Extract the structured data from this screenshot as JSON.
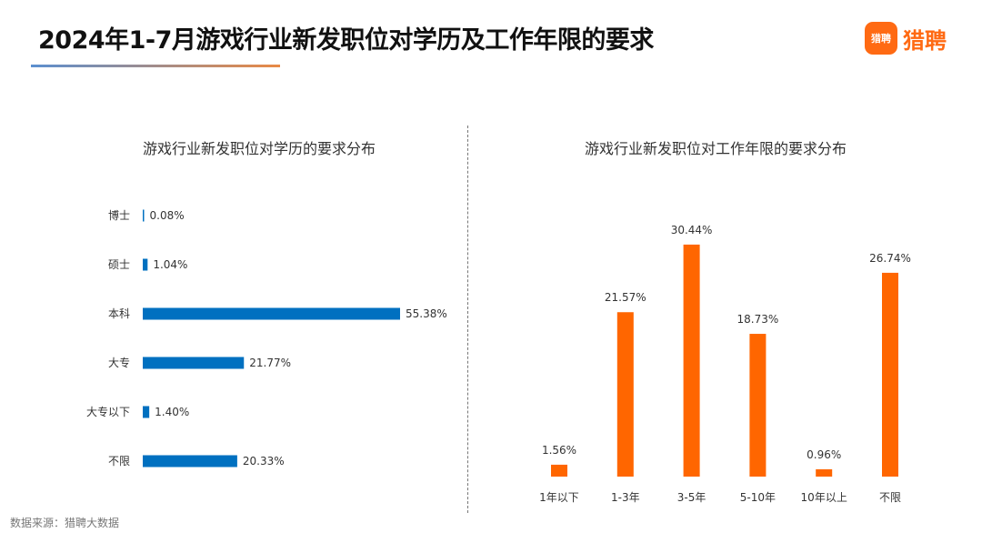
{
  "header": {
    "title": "2024年1-7月游戏行业新发职位对学历及工作年限的要求",
    "logo_badge": "猎聘",
    "logo_text": "猎聘"
  },
  "source": "数据来源：猎聘大数据",
  "chart_data": [
    {
      "type": "bar",
      "orientation": "horizontal",
      "title": "游戏行业新发职位对学历的要求分布",
      "categories": [
        "博士",
        "硕士",
        "本科",
        "大专",
        "大专以下",
        "不限"
      ],
      "values": [
        0.08,
        1.04,
        55.38,
        21.77,
        1.4,
        20.33
      ],
      "labels": [
        "0.08%",
        "1.04%",
        "55.38%",
        "21.77%",
        "1.40%",
        "20.33%"
      ],
      "unit": "%",
      "color": "#0070c0",
      "grid": false
    },
    {
      "type": "bar",
      "orientation": "vertical",
      "title": "游戏行业新发职位对工作年限的要求分布",
      "categories": [
        "1年以下",
        "1-3年",
        "3-5年",
        "5-10年",
        "10年以上",
        "不限"
      ],
      "values": [
        1.56,
        21.57,
        30.44,
        18.73,
        0.96,
        26.74
      ],
      "labels": [
        "1.56%",
        "21.57%",
        "30.44%",
        "18.73%",
        "0.96%",
        "26.74%"
      ],
      "unit": "%",
      "color": "#ff6600",
      "grid": false
    }
  ]
}
